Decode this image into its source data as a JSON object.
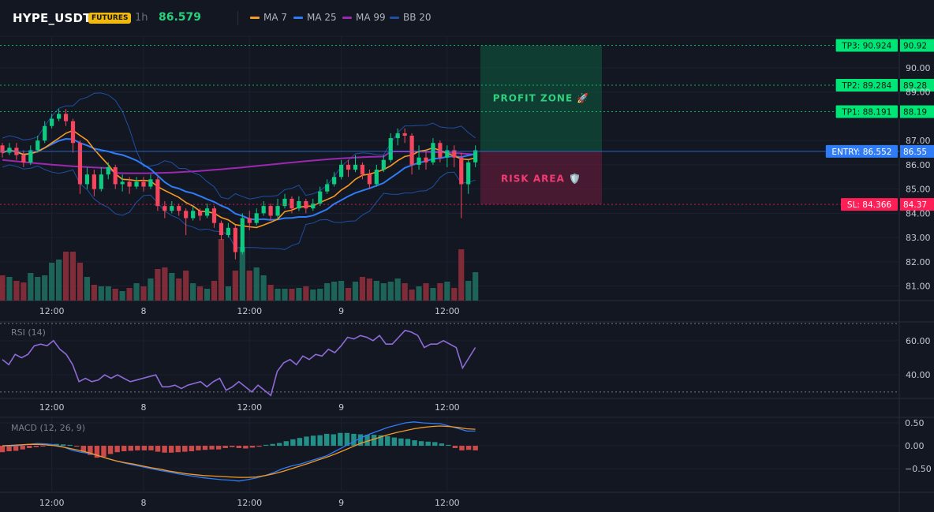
{
  "header": {
    "symbol": "HYPE_USDT",
    "badge": "FUTURES",
    "timeframe": "1h",
    "last_price": "86.579"
  },
  "legend": [
    {
      "label": "MA 7",
      "color": "#f59a23"
    },
    {
      "label": "MA 25",
      "color": "#2f7cf6"
    },
    {
      "label": "MA 99",
      "color": "#9c27b0"
    },
    {
      "label": "BB 20",
      "color": "#1e4fa3"
    }
  ],
  "chart_data": [
    {
      "type": "candlestick",
      "pane": "price",
      "y_ticks": [
        81,
        82,
        83,
        84,
        85,
        86,
        87,
        89,
        90
      ],
      "y_tick_labels": [
        "81.00",
        "82.00",
        "83.00",
        "84.00",
        "85.00",
        "86.00",
        "87.00",
        "89.00",
        "90.00"
      ],
      "ylim": [
        80.4,
        91.3
      ],
      "x_tick_labels": [
        "12:00",
        "8",
        "12:00",
        "9",
        "12:00"
      ],
      "x_tick_index": [
        7,
        20,
        35,
        48,
        63
      ],
      "overlays": [
        "MA 7",
        "MA 25",
        "MA 99",
        "BB 20"
      ],
      "levels": [
        {
          "name": "TP3",
          "price": 90.924,
          "axis_label": "90.92",
          "tag": "TP3: 90.924",
          "color": "#22ab94"
        },
        {
          "name": "TP2",
          "price": 89.284,
          "axis_label": "89.28",
          "tag": "TP2: 89.284",
          "color": "#22ab94"
        },
        {
          "name": "TP1",
          "price": 88.191,
          "axis_label": "88.19",
          "tag": "TP1: 88.191",
          "color": "#22ab94"
        },
        {
          "name": "ENTRY",
          "price": 86.552,
          "axis_label": "86.55",
          "tag": "ENTRY: 86.552",
          "color": "#2f7cf6"
        },
        {
          "name": "SL",
          "price": 84.366,
          "axis_label": "84.37",
          "tag": "SL: 84.366",
          "color": "#f23645"
        }
      ],
      "zones": {
        "profit_label": "PROFIT ZONE 🚀",
        "risk_label": "RISK AREA 🛡️",
        "profit_top": 90.924,
        "entry": 86.552,
        "stop": 84.366
      },
      "candles": [
        [
          86.8,
          86.5,
          86.9,
          86.3
        ],
        [
          86.5,
          86.7,
          86.9,
          86.4
        ],
        [
          86.7,
          86.4,
          86.9,
          86.2
        ],
        [
          86.4,
          86.1,
          86.6,
          85.9
        ],
        [
          86.1,
          86.6,
          86.8,
          86.0
        ],
        [
          86.6,
          87.0,
          87.2,
          86.5
        ],
        [
          87.0,
          87.6,
          87.8,
          86.9
        ],
        [
          87.6,
          87.9,
          88.1,
          87.5
        ],
        [
          87.9,
          88.1,
          88.3,
          87.8
        ],
        [
          88.1,
          87.8,
          88.3,
          87.6
        ],
        [
          87.8,
          86.9,
          87.9,
          86.5
        ],
        [
          86.9,
          85.2,
          87.0,
          84.8
        ],
        [
          85.2,
          85.6,
          85.9,
          85.0
        ],
        [
          85.6,
          85.0,
          85.8,
          84.7
        ],
        [
          85.0,
          85.6,
          85.9,
          84.9
        ],
        [
          85.6,
          85.9,
          86.1,
          85.4
        ],
        [
          85.9,
          85.2,
          86.0,
          85.0
        ],
        [
          85.2,
          85.3,
          85.6,
          84.9
        ],
        [
          85.3,
          85.1,
          85.5,
          84.8
        ],
        [
          85.1,
          85.3,
          85.5,
          85.0
        ],
        [
          85.3,
          85.1,
          85.5,
          84.9
        ],
        [
          85.1,
          85.4,
          85.6,
          85.0
        ],
        [
          85.4,
          84.3,
          85.5,
          84.1
        ],
        [
          84.3,
          84.1,
          84.5,
          83.8
        ],
        [
          84.1,
          84.3,
          84.5,
          84.0
        ],
        [
          84.3,
          84.1,
          84.4,
          83.9
        ],
        [
          84.1,
          83.8,
          84.2,
          83.1
        ],
        [
          83.8,
          84.1,
          84.3,
          83.7
        ],
        [
          84.1,
          83.9,
          84.2,
          83.7
        ],
        [
          83.9,
          84.2,
          84.4,
          83.8
        ],
        [
          84.2,
          83.6,
          84.3,
          83.4
        ],
        [
          83.6,
          83.1,
          83.7,
          82.9
        ],
        [
          83.1,
          83.4,
          83.6,
          83.0
        ],
        [
          83.4,
          82.4,
          83.5,
          82.1
        ],
        [
          82.4,
          83.8,
          84.0,
          82.3
        ],
        [
          83.8,
          83.6,
          84.1,
          83.3
        ],
        [
          83.6,
          84.0,
          84.2,
          83.5
        ],
        [
          84.0,
          84.3,
          84.5,
          83.9
        ],
        [
          84.3,
          83.9,
          84.4,
          83.7
        ],
        [
          83.9,
          84.3,
          84.6,
          83.8
        ],
        [
          84.3,
          84.6,
          84.8,
          84.2
        ],
        [
          84.6,
          84.2,
          84.7,
          84.0
        ],
        [
          84.2,
          84.5,
          84.7,
          84.1
        ],
        [
          84.5,
          84.2,
          84.6,
          84.0
        ],
        [
          84.2,
          84.4,
          84.6,
          84.1
        ],
        [
          84.4,
          84.9,
          85.1,
          84.3
        ],
        [
          84.9,
          85.2,
          85.4,
          84.8
        ],
        [
          85.2,
          85.5,
          85.7,
          85.1
        ],
        [
          85.5,
          86.0,
          86.2,
          85.4
        ],
        [
          86.0,
          85.8,
          86.2,
          85.5
        ],
        [
          85.8,
          86.0,
          86.4,
          85.7
        ],
        [
          86.0,
          85.6,
          86.1,
          85.4
        ],
        [
          85.6,
          85.2,
          85.8,
          85.0
        ],
        [
          85.2,
          85.8,
          86.0,
          85.1
        ],
        [
          85.8,
          86.2,
          86.4,
          85.7
        ],
        [
          86.2,
          87.1,
          87.3,
          86.1
        ],
        [
          87.1,
          87.3,
          87.5,
          86.8
        ],
        [
          87.3,
          87.2,
          87.5,
          86.9
        ],
        [
          87.2,
          86.0,
          87.3,
          85.6
        ],
        [
          86.0,
          86.3,
          86.8,
          85.8
        ],
        [
          86.3,
          86.1,
          86.6,
          85.8
        ],
        [
          86.1,
          86.9,
          87.1,
          86.0
        ],
        [
          86.9,
          86.3,
          87.0,
          86.1
        ],
        [
          86.3,
          86.6,
          86.8,
          85.9
        ],
        [
          86.6,
          86.3,
          86.8,
          85.9
        ],
        [
          86.3,
          85.2,
          86.5,
          83.8
        ],
        [
          85.2,
          86.1,
          86.2,
          84.8
        ],
        [
          86.1,
          86.6,
          86.8,
          85.9
        ]
      ],
      "volume": [
        32,
        30,
        25,
        23,
        35,
        30,
        32,
        48,
        52,
        62,
        62,
        48,
        30,
        20,
        18,
        18,
        15,
        12,
        16,
        22,
        18,
        28,
        40,
        42,
        35,
        28,
        38,
        22,
        18,
        15,
        25,
        78,
        18,
        38,
        68,
        38,
        42,
        32,
        20,
        15,
        15,
        15,
        16,
        18,
        14,
        15,
        22,
        24,
        25,
        16,
        24,
        30,
        28,
        25,
        22,
        24,
        28,
        22,
        14,
        18,
        22,
        16,
        22,
        24,
        16,
        65,
        25,
        36
      ]
    },
    {
      "type": "line",
      "pane": "RSI",
      "title": "RSI (14)",
      "y_ticks": [
        40,
        60
      ],
      "y_tick_labels": [
        "40.00",
        "60.00"
      ],
      "ylim": [
        29,
        71
      ],
      "bands": [
        70,
        30
      ],
      "values": [
        49,
        46,
        52,
        50,
        52,
        57,
        58,
        57,
        60,
        55,
        52,
        46,
        36,
        38,
        36,
        37,
        40,
        38,
        40,
        38,
        36,
        37,
        38,
        39,
        40,
        33,
        33,
        34,
        32,
        34,
        35,
        36,
        33,
        36,
        38,
        31,
        33,
        36,
        33,
        30,
        34,
        31,
        28,
        42,
        47,
        49,
        46,
        51,
        49,
        52,
        51,
        55,
        53,
        57,
        62,
        61,
        63,
        62,
        60,
        63,
        58,
        58,
        62,
        66,
        65,
        63,
        56,
        58,
        58,
        60,
        58,
        56,
        44,
        50,
        56
      ]
    },
    {
      "type": "macd",
      "pane": "MACD",
      "title": "MACD (12, 26, 9)",
      "y_ticks": [
        0.5,
        0,
        -0.5
      ],
      "y_tick_labels": [
        "0.50",
        "0.00",
        "−0.50"
      ],
      "ylim": [
        -0.98,
        0.62
      ],
      "histogram": [
        -0.14,
        -0.12,
        -0.11,
        -0.08,
        -0.05,
        -0.03,
        -0.01,
        0.02,
        0.04,
        0.03,
        0.02,
        -0.02,
        -0.13,
        -0.2,
        -0.26,
        -0.24,
        -0.18,
        -0.14,
        -0.12,
        -0.11,
        -0.1,
        -0.1,
        -0.1,
        -0.13,
        -0.15,
        -0.15,
        -0.14,
        -0.13,
        -0.12,
        -0.1,
        -0.09,
        -0.08,
        -0.08,
        -0.05,
        -0.03,
        -0.05,
        -0.06,
        -0.04,
        -0.02,
        0.02,
        0.04,
        0.06,
        0.1,
        0.14,
        0.17,
        0.2,
        0.22,
        0.23,
        0.26,
        0.25,
        0.28,
        0.28,
        0.26,
        0.25,
        0.24,
        0.24,
        0.23,
        0.21,
        0.18,
        0.16,
        0.15,
        0.12,
        0.1,
        0.09,
        0.08,
        0.05,
        0.02,
        -0.05,
        -0.1,
        -0.09,
        -0.1
      ],
      "macd_line": [
        0.0,
        -0.01,
        0.01,
        0.03,
        0.05,
        0.04,
        0.02,
        -0.03,
        -0.1,
        -0.14,
        -0.17,
        -0.22,
        -0.28,
        -0.33,
        -0.38,
        -0.42,
        -0.46,
        -0.5,
        -0.54,
        -0.57,
        -0.61,
        -0.64,
        -0.67,
        -0.7,
        -0.72,
        -0.74,
        -0.75,
        -0.77,
        -0.74,
        -0.7,
        -0.65,
        -0.58,
        -0.5,
        -0.44,
        -0.4,
        -0.34,
        -0.28,
        -0.22,
        -0.12,
        -0.02,
        0.08,
        0.18,
        0.26,
        0.33,
        0.4,
        0.45,
        0.5,
        0.52,
        0.5,
        0.49,
        0.48,
        0.43,
        0.38,
        0.32,
        0.32
      ],
      "signal_line": [
        0.0,
        0.01,
        0.02,
        0.03,
        0.03,
        0.02,
        0.0,
        -0.03,
        -0.07,
        -0.11,
        -0.16,
        -0.22,
        -0.28,
        -0.33,
        -0.37,
        -0.4,
        -0.44,
        -0.48,
        -0.51,
        -0.55,
        -0.58,
        -0.61,
        -0.63,
        -0.65,
        -0.66,
        -0.67,
        -0.68,
        -0.69,
        -0.69,
        -0.68,
        -0.65,
        -0.61,
        -0.56,
        -0.5,
        -0.44,
        -0.38,
        -0.31,
        -0.25,
        -0.18,
        -0.1,
        -0.02,
        0.06,
        0.12,
        0.18,
        0.24,
        0.29,
        0.33,
        0.37,
        0.4,
        0.42,
        0.43,
        0.42,
        0.4,
        0.37,
        0.36
      ]
    }
  ]
}
